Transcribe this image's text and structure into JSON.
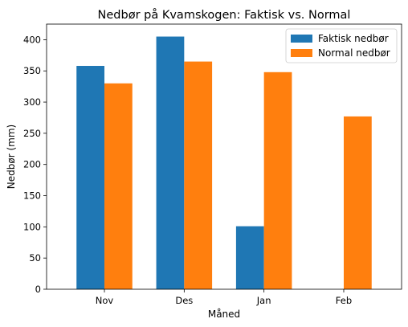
{
  "chart_data": {
    "type": "bar",
    "title": "Nedbør på Kvamskogen: Faktisk vs. Normal",
    "xlabel": "Måned",
    "ylabel": "Nedbør (mm)",
    "categories": [
      "Nov",
      "Des",
      "Jan",
      "Feb"
    ],
    "ylim": [
      0,
      425
    ],
    "yticks": [
      0,
      50,
      100,
      150,
      200,
      250,
      300,
      350,
      400
    ],
    "grid": false,
    "legend_position": "top-right",
    "series": [
      {
        "name": "Faktisk nedbør",
        "color": "#1f77b4",
        "values": [
          358,
          405,
          101,
          0
        ]
      },
      {
        "name": "Normal nedbør",
        "color": "#ff7f0e",
        "values": [
          330,
          365,
          348,
          277
        ]
      }
    ]
  }
}
